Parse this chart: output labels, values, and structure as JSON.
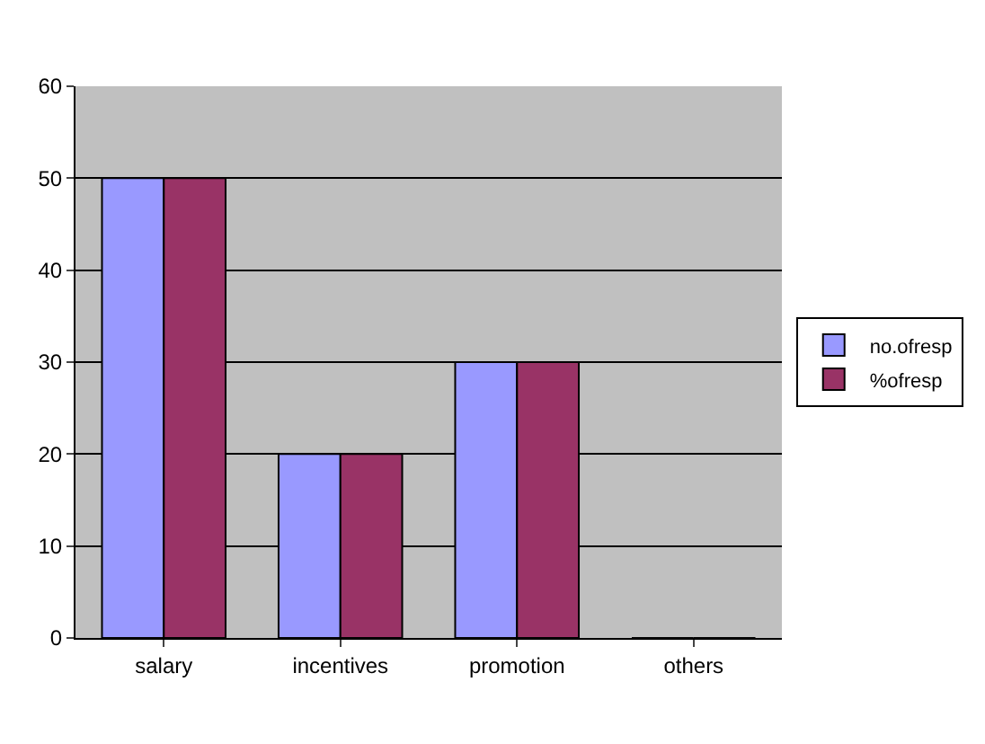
{
  "chart_data": {
    "type": "bar",
    "categories": [
      "salary",
      "incentives",
      "promotion",
      "others"
    ],
    "series": [
      {
        "name": "no.ofresp",
        "color": "#9999ff",
        "values": [
          50,
          20,
          30,
          0
        ]
      },
      {
        "name": "%ofresp",
        "color": "#993366",
        "values": [
          50,
          20,
          30,
          0
        ]
      }
    ],
    "ylim": [
      0,
      60
    ],
    "yticks": [
      0,
      10,
      20,
      30,
      40,
      50,
      60
    ],
    "grid": "y",
    "legend": "right"
  }
}
